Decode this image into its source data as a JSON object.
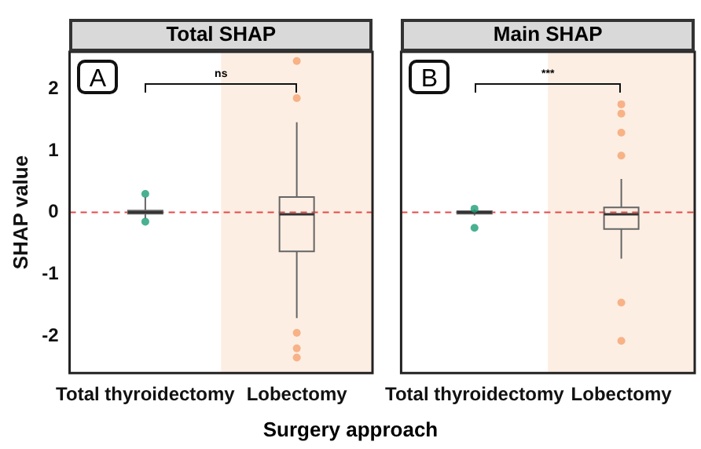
{
  "chart_data": [
    {
      "type": "box",
      "title": "Total SHAP",
      "xlabel": "Surgery approach",
      "ylabel": "SHAP value",
      "categories": [
        "Total thyroidectomy",
        "Lobectomy"
      ],
      "boxes": [
        {
          "low": -0.1,
          "q1": -0.02,
          "median": 0,
          "q3": 0.03,
          "high": 0.25
        },
        {
          "low": -1.71,
          "q1": -0.63,
          "median": -0.03,
          "q3": 0.25,
          "high": 1.46
        }
      ],
      "series": [
        {
          "type": "scatter",
          "x": [
            "Total thyroidectomy",
            "Total thyroidectomy",
            "Lobectomy",
            "Lobectomy",
            "Lobectomy",
            "Lobectomy",
            "Lobectomy"
          ],
          "values": [
            0.3,
            -0.15,
            2.45,
            1.85,
            -2.35,
            -1.95,
            -2.2
          ],
          "colors": [
            "#1b9e77",
            "#1b9e77",
            "#f5a26f",
            "#f5a26f",
            "#f5a26f",
            "#f5a26f",
            "#f5a26f"
          ]
        }
      ],
      "ylim": [
        -2.6,
        2.6
      ],
      "yticks": [
        -2,
        -1,
        0,
        1,
        2
      ],
      "grid": false,
      "ref_lines": [
        {
          "axis": "y",
          "value": 0,
          "color": "#e34a4a",
          "line_style": "dashed"
        }
      ],
      "bands": [
        {
          "axis": "x",
          "from": "Lobectomy",
          "to": "Lobectomy",
          "color": "#fdeee3"
        }
      ],
      "annotations": [
        "A",
        "ns"
      ]
    },
    {
      "type": "box",
      "title": "Main SHAP",
      "categories": [
        "Total thyroidectomy",
        "Lobectomy"
      ],
      "boxes": [
        {
          "low": -0.05,
          "q1": -0.02,
          "median": 0,
          "q3": 0.02,
          "high": 0.05
        },
        {
          "low": -0.75,
          "q1": -0.27,
          "median": -0.03,
          "q3": 0.08,
          "high": 0.54
        }
      ],
      "series": [
        {
          "type": "scatter",
          "x": [
            "Total thyroidectomy",
            "Total thyroidectomy",
            "Lobectomy",
            "Lobectomy",
            "Lobectomy",
            "Lobectomy",
            "Lobectomy",
            "Lobectomy"
          ],
          "values": [
            -0.25,
            0.06,
            1.75,
            1.6,
            1.29,
            0.92,
            -1.46,
            -2.08
          ],
          "colors": [
            "#1b9e77",
            "#1b9e77",
            "#f5a26f",
            "#f5a26f",
            "#f5a26f",
            "#f5a26f",
            "#f5a26f",
            "#f5a26f"
          ]
        }
      ],
      "ylim": [
        -2.6,
        2.6
      ],
      "yticks": [
        -2,
        -1,
        0,
        1,
        2
      ],
      "grid": false,
      "tick_labels": "x",
      "ref_lines": [
        {
          "axis": "y",
          "value": 0,
          "color": "#e34a4a",
          "line_style": "dashed"
        }
      ],
      "bands": [
        {
          "axis": "x",
          "from": "Lobectomy",
          "to": "Lobectomy",
          "color": "#fdeee3"
        }
      ],
      "annotations": [
        "B",
        "***"
      ]
    }
  ]
}
